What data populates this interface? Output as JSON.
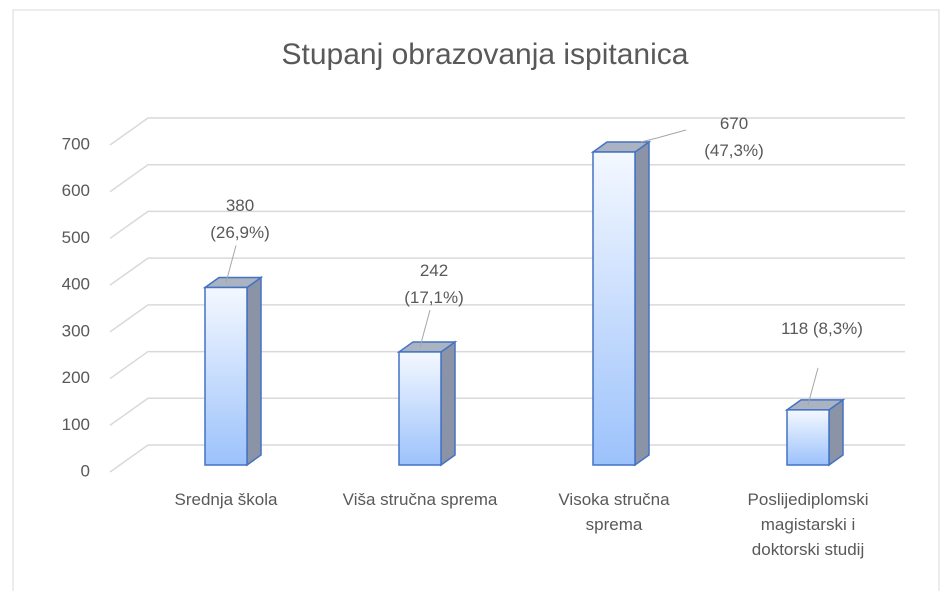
{
  "chart_data": {
    "type": "bar3d",
    "title": "Stupanj obrazovanja ispitanica",
    "categories": [
      "Srednja škola",
      "Viša stručna sprema",
      "Visoka stručna sprema",
      "Poslijediplomski magistarski i doktorski studij"
    ],
    "values": [
      380,
      242,
      670,
      118
    ],
    "value_labels": [
      "380 (26,9%)",
      "242 (17,1%)",
      "670 (47,3%)",
      "118 (8,3%)"
    ],
    "color": "#4472c4",
    "ylim": [
      0,
      700
    ],
    "yticks": [
      0,
      100,
      200,
      300,
      400,
      500,
      600,
      700
    ],
    "grid": true
  }
}
